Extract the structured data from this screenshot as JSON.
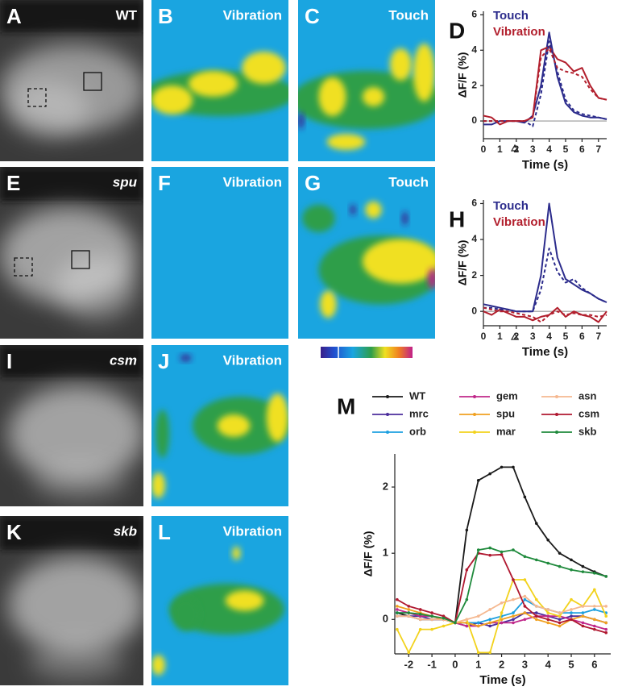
{
  "panels": [
    {
      "letter": "A",
      "label": "WT",
      "italic": false
    },
    {
      "letter": "B",
      "label": "Vibration",
      "italic": false
    },
    {
      "letter": "C",
      "label": "Touch",
      "italic": false
    },
    {
      "letter": "E",
      "label": "spu",
      "italic": true
    },
    {
      "letter": "F",
      "label": "Vibration",
      "italic": false
    },
    {
      "letter": "G",
      "label": "Touch",
      "italic": false
    },
    {
      "letter": "I",
      "label": "csm",
      "italic": true
    },
    {
      "letter": "J",
      "label": "Vibration",
      "italic": false
    },
    {
      "letter": "K",
      "label": "skb",
      "italic": true
    },
    {
      "letter": "L",
      "label": "Vibration",
      "italic": false
    }
  ],
  "chart_data": [
    {
      "type": "line",
      "panel": "D",
      "xlabel": "Time (s)",
      "ylabel": "ΔF/F (%)",
      "x": [
        0,
        0.5,
        1,
        1.5,
        2,
        2.5,
        3,
        3.5,
        4,
        4.5,
        5,
        5.5,
        6,
        6.5,
        7,
        7.5
      ],
      "xlim": [
        0,
        7.5
      ],
      "xticks": [
        0,
        1,
        2,
        3,
        4,
        5,
        6,
        7
      ],
      "ylim": [
        -1,
        6.2
      ],
      "yticks": [
        0,
        2,
        4,
        6
      ],
      "zero_line": true,
      "series": [
        {
          "name": "Touch",
          "color": "#2c2c8c",
          "values": [
            -0.2,
            -0.2,
            0,
            0,
            0,
            -0.1,
            0.3,
            2,
            5,
            2.5,
            1,
            0.5,
            0.3,
            0.2,
            0.2,
            0.1
          ]
        },
        {
          "name": "Vibration",
          "color": "#b21f2d",
          "values": [
            0.3,
            0.2,
            -0.2,
            0,
            0,
            0,
            0.2,
            4,
            4.2,
            3.5,
            3.3,
            2.8,
            3,
            2,
            1.3,
            1.2
          ]
        },
        {
          "color": "#2c2c8c",
          "dashed": true,
          "values": [
            0,
            0,
            0,
            0,
            0,
            0,
            -0.3,
            1.5,
            4.5,
            2.8,
            1.2,
            0.6,
            0.4,
            0.3,
            0.2,
            0.1
          ]
        },
        {
          "color": "#b21f2d",
          "dashed": true,
          "values": [
            0,
            0,
            0,
            0,
            0,
            0,
            0.2,
            3.6,
            4.1,
            3,
            2.8,
            2.7,
            2.5,
            1.8,
            1.3,
            1.2
          ]
        }
      ]
    },
    {
      "type": "line",
      "panel": "H",
      "xlabel": "Time (s)",
      "ylabel": "ΔF/F (%)",
      "x": [
        0,
        0.5,
        1,
        1.5,
        2,
        2.5,
        3,
        3.5,
        4,
        4.5,
        5,
        5.5,
        6,
        6.5,
        7,
        7.5
      ],
      "xlim": [
        0,
        7.5
      ],
      "xticks": [
        0,
        1,
        2,
        3,
        4,
        5,
        6,
        7
      ],
      "ylim": [
        -0.8,
        6.2
      ],
      "yticks": [
        0,
        2,
        4,
        6
      ],
      "zero_line": true,
      "series": [
        {
          "name": "Touch",
          "color": "#2c2c8c",
          "values": [
            0.4,
            0.3,
            0.2,
            0.1,
            0,
            0,
            0,
            2,
            6,
            3,
            1.8,
            1.5,
            1.2,
            1,
            0.7,
            0.5
          ]
        },
        {
          "name": "Vibration",
          "color": "#b21f2d",
          "values": [
            0,
            -0.2,
            0.1,
            -0.1,
            -0.3,
            -0.3,
            -0.5,
            -0.3,
            -0.2,
            0.2,
            -0.3,
            0,
            -0.2,
            -0.3,
            -0.6,
            0
          ]
        },
        {
          "color": "#2c2c8c",
          "dashed": true,
          "values": [
            0.2,
            0.2,
            0.1,
            0.1,
            0,
            0,
            0,
            1.2,
            3.5,
            2.2,
            1.6,
            1.8,
            1.3,
            1,
            0.7,
            0.5
          ]
        },
        {
          "color": "#b21f2d",
          "dashed": true,
          "values": [
            0.2,
            0.1,
            0,
            0,
            -0.1,
            -0.2,
            -0.3,
            -0.6,
            -0.2,
            0,
            -0.2,
            -0.1,
            -0.2,
            -0.2,
            -0.3,
            -0.2
          ]
        }
      ]
    },
    {
      "type": "line",
      "panel": "M",
      "xlabel": "Time (s)",
      "ylabel": "ΔF/F (%)",
      "markers": true,
      "x": [
        -2.5,
        -2,
        -1.5,
        -1,
        -0.5,
        0,
        0.5,
        1,
        1.5,
        2,
        2.5,
        3,
        3.5,
        4,
        4.5,
        5,
        5.5,
        6,
        6.5
      ],
      "xlim": [
        -2.6,
        6.7
      ],
      "xticks": [
        -2,
        -1,
        0,
        1,
        2,
        3,
        4,
        5,
        6
      ],
      "ylim": [
        -0.52,
        2.5
      ],
      "yticks": [
        0,
        1,
        2
      ],
      "series": [
        {
          "name": "WT",
          "color": "#1a1a1a",
          "values": [
            0.1,
            0.05,
            0,
            0,
            0,
            -0.05,
            1.35,
            2.1,
            2.2,
            2.3,
            2.3,
            1.85,
            1.45,
            1.2,
            1.0,
            0.9,
            0.8,
            0.72,
            0.65
          ]
        },
        {
          "name": "mrc",
          "color": "#4b2d9b",
          "values": [
            0.05,
            0.05,
            0.05,
            0,
            0,
            -0.05,
            -0.1,
            -0.05,
            -0.1,
            -0.05,
            0,
            0.1,
            0.1,
            0.05,
            0,
            0.05,
            0.05,
            0,
            -0.05
          ]
        },
        {
          "name": "orb",
          "color": "#1da0e0",
          "values": [
            0.1,
            0.1,
            0.05,
            0.05,
            0,
            -0.05,
            -0.05,
            -0.05,
            0,
            0.05,
            0.1,
            0.3,
            0.2,
            0.15,
            0.1,
            0.1,
            0.1,
            0.15,
            0.1
          ]
        },
        {
          "name": "gem",
          "color": "#c0288a",
          "values": [
            0.15,
            0.1,
            0.05,
            0.05,
            0,
            -0.05,
            -0.1,
            -0.1,
            -0.05,
            -0.05,
            -0.05,
            0,
            0.05,
            0.05,
            0.05,
            0,
            -0.05,
            -0.1,
            -0.15
          ]
        },
        {
          "name": "spu",
          "color": "#f0a020",
          "values": [
            0.2,
            0.15,
            0.1,
            0.05,
            0,
            -0.05,
            -0.05,
            -0.1,
            -0.05,
            0,
            0.05,
            0.1,
            0,
            -0.05,
            -0.1,
            0,
            0.05,
            0,
            -0.05
          ]
        },
        {
          "name": "mar",
          "color": "#f2d21c",
          "values": [
            -0.15,
            -0.5,
            -0.15,
            -0.15,
            -0.1,
            -0.05,
            0,
            -0.5,
            -0.5,
            0.1,
            0.6,
            0.6,
            0.3,
            0.1,
            0.05,
            0.3,
            0.2,
            0.45,
            0.05
          ]
        },
        {
          "name": "asn",
          "color": "#f5b890",
          "values": [
            0.05,
            0.05,
            0,
            0,
            0,
            -0.05,
            0,
            0.05,
            0.15,
            0.25,
            0.3,
            0.35,
            0.2,
            0.15,
            0.1,
            0.15,
            0.2,
            0.2,
            0.2
          ]
        },
        {
          "name": "csm",
          "color": "#b01830",
          "values": [
            0.3,
            0.2,
            0.15,
            0.1,
            0.05,
            -0.05,
            0.75,
            1.0,
            0.97,
            0.98,
            0.6,
            0.2,
            0.05,
            0,
            -0.05,
            0,
            -0.1,
            -0.15,
            -0.2
          ]
        },
        {
          "name": "skb",
          "color": "#1f8a3c",
          "values": [
            0.1,
            0.1,
            0.08,
            0.05,
            0.02,
            -0.05,
            0.3,
            1.05,
            1.08,
            1.02,
            1.05,
            0.95,
            0.9,
            0.85,
            0.8,
            0.75,
            0.72,
            0.7,
            0.65
          ]
        }
      ]
    }
  ]
}
